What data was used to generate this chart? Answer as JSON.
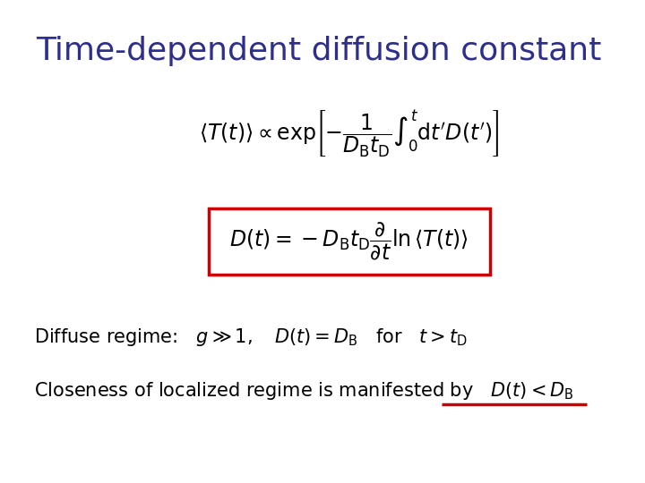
{
  "title": "Time-dependent diffusion constant",
  "title_color": "#2E2E8B",
  "title_fontsize": 26,
  "bg_color": "#FFFFFF",
  "eq2_box_color": "#CC0000",
  "text2_underline_color": "#CC0000",
  "text_fontsize": 15,
  "eq1_fontsize": 17,
  "eq2_fontsize": 17
}
